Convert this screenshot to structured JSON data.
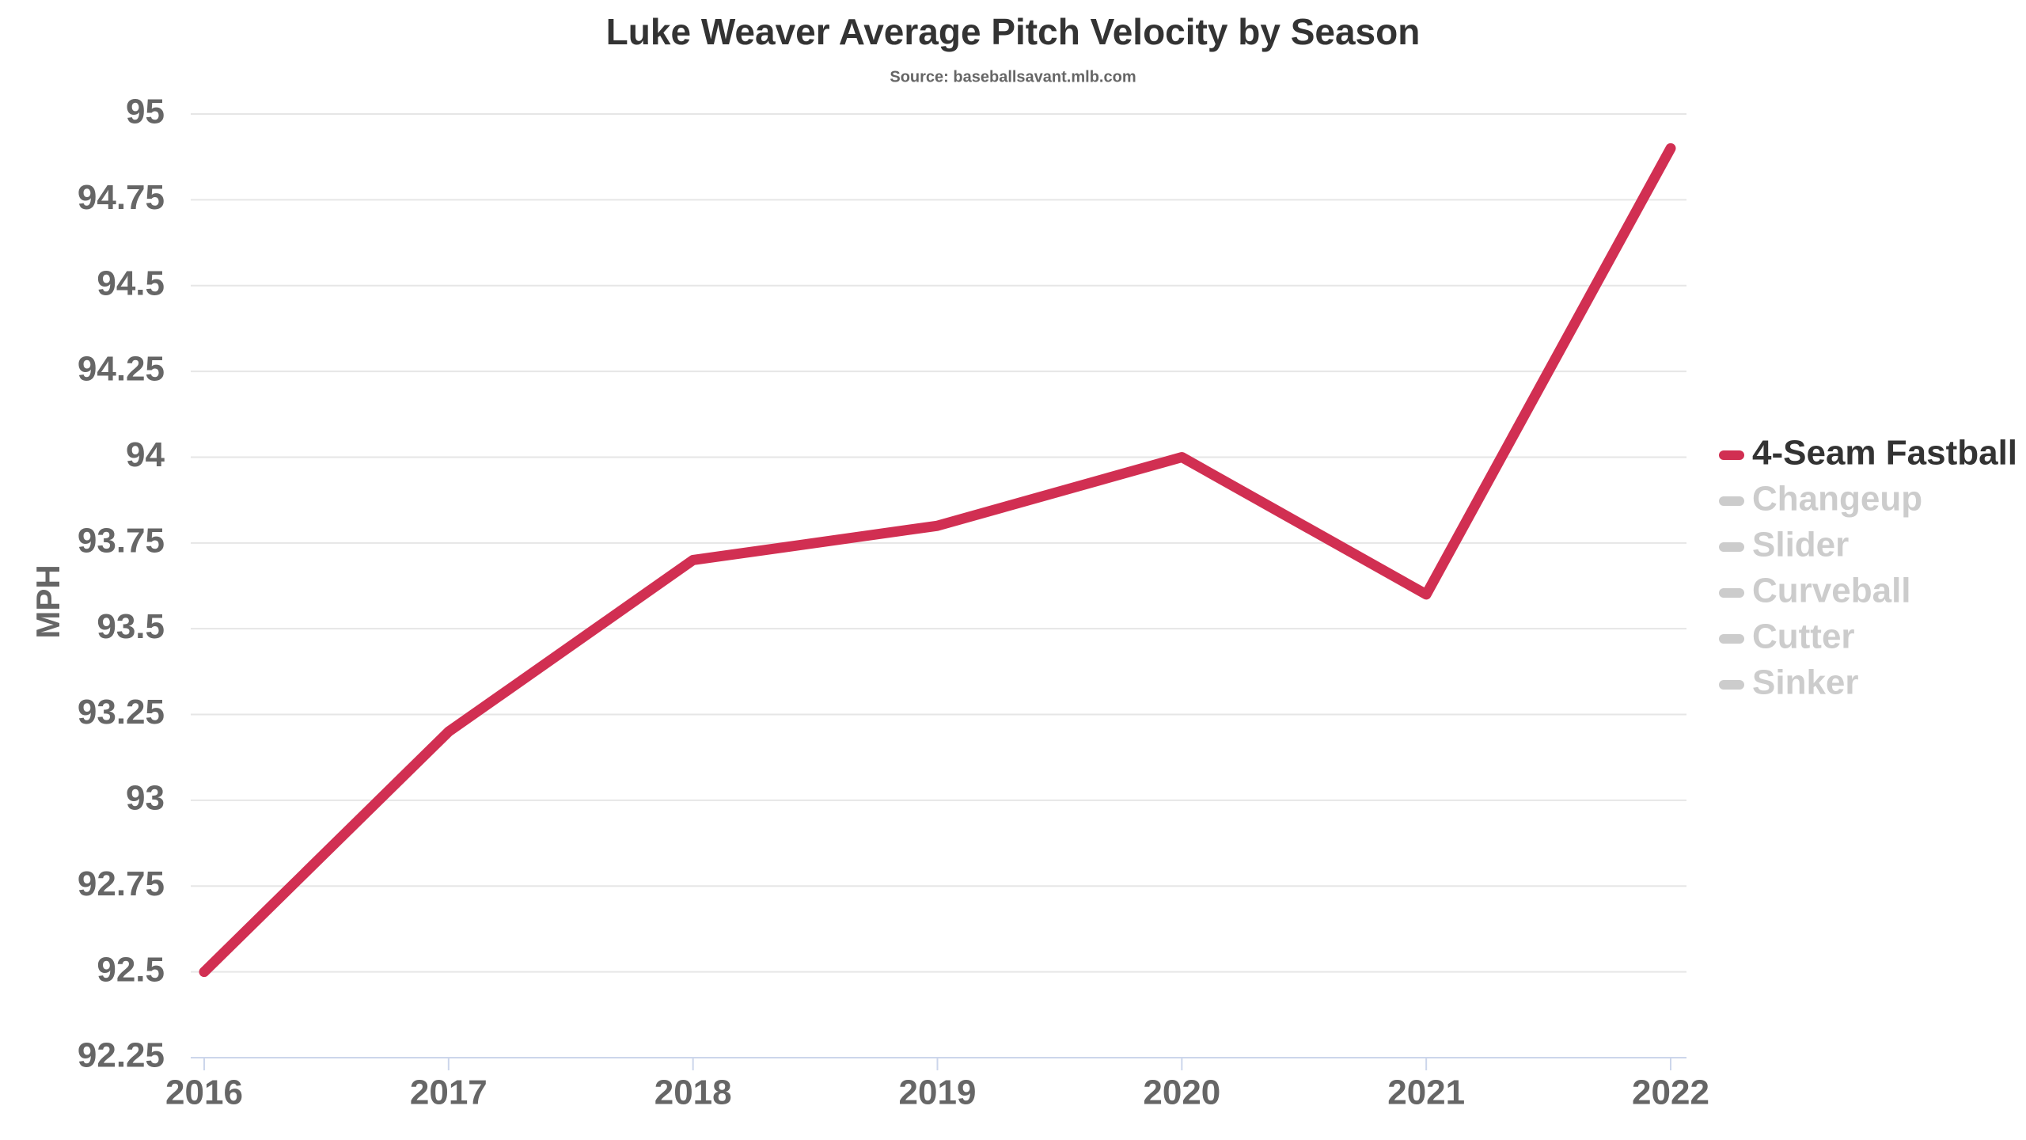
{
  "chart_data": {
    "type": "line",
    "title": "Luke Weaver Average Pitch Velocity by Season",
    "subtitle": "Source: baseballsavant.mlb.com",
    "y_label": "MPH",
    "categories": [
      "2016",
      "2017",
      "2018",
      "2019",
      "2020",
      "2021",
      "2022"
    ],
    "series": [
      {
        "name": "4-Seam Fastball",
        "color": "#d12f52",
        "visible": true,
        "values": [
          92.5,
          93.2,
          93.7,
          93.8,
          94.0,
          93.6,
          94.9
        ]
      },
      {
        "name": "Changeup",
        "color": "#cccccc",
        "visible": false,
        "values": [
          null,
          null,
          null,
          null,
          null,
          null,
          null
        ]
      },
      {
        "name": "Slider",
        "color": "#cccccc",
        "visible": false,
        "values": [
          null,
          null,
          null,
          null,
          null,
          null,
          null
        ]
      },
      {
        "name": "Curveball",
        "color": "#cccccc",
        "visible": false,
        "values": [
          null,
          null,
          null,
          null,
          null,
          null,
          null
        ]
      },
      {
        "name": "Cutter",
        "color": "#cccccc",
        "visible": false,
        "values": [
          null,
          null,
          null,
          null,
          null,
          null,
          null
        ]
      },
      {
        "name": "Sinker",
        "color": "#cccccc",
        "visible": false,
        "values": [
          null,
          null,
          null,
          null,
          null,
          null,
          null
        ]
      }
    ],
    "ylim": [
      92.25,
      95
    ],
    "yticks": [
      92.25,
      92.5,
      92.75,
      93,
      93.25,
      93.5,
      93.75,
      94,
      94.25,
      94.5,
      94.75,
      95
    ],
    "grid": true,
    "legend": "right"
  }
}
